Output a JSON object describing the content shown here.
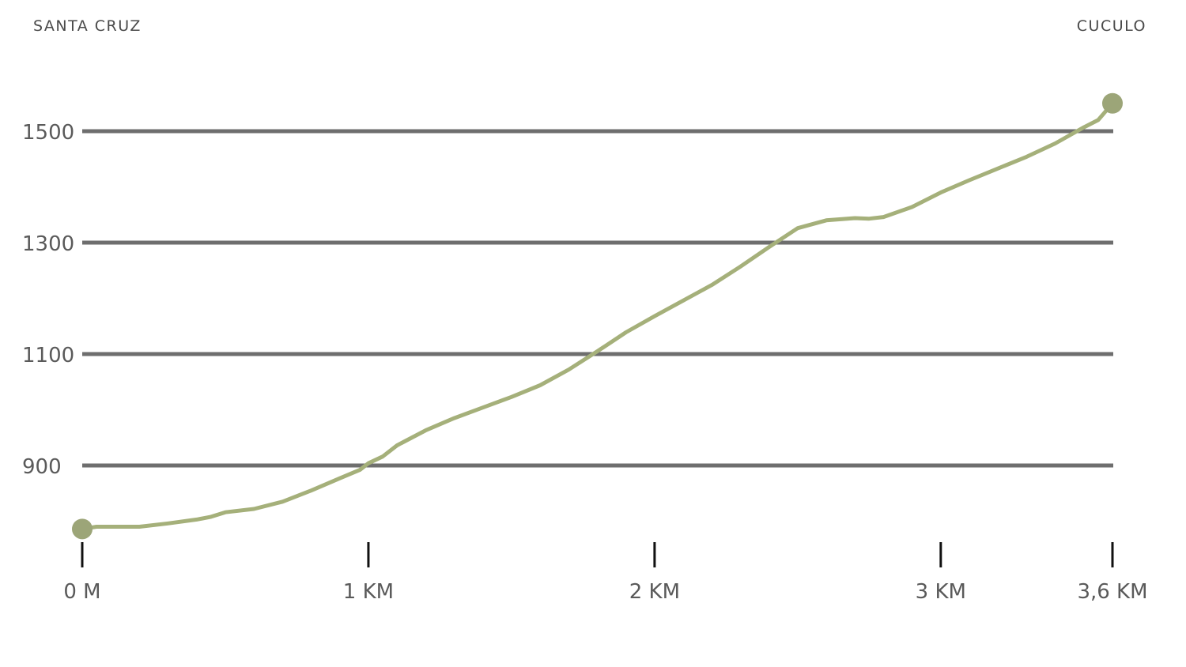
{
  "header": {
    "start_place": "SANTA CRUZ",
    "end_place": "CUCULO"
  },
  "colors": {
    "line": "#a5b07a",
    "marker": "#9ca578",
    "grid": "#6e6e6e",
    "axis_tick": "#111111"
  },
  "chart_data": {
    "type": "line",
    "title": "",
    "xlabel": "",
    "ylabel": "",
    "xlim": [
      0,
      3.6
    ],
    "ylim": [
      790,
      1550
    ],
    "yticks": [
      900,
      1100,
      1300,
      1500
    ],
    "ytick_labels": [
      "900",
      "1100",
      "1300",
      "1500"
    ],
    "xticks": [
      0,
      1,
      2,
      3,
      3.6
    ],
    "xtick_labels": [
      "0 M",
      "1 KM",
      "2 KM",
      "3 KM",
      "3,6 KM"
    ],
    "grid": true,
    "series": [
      {
        "x": [
          0,
          0.05,
          0.1,
          0.2,
          0.3,
          0.4,
          0.45,
          0.5,
          0.6,
          0.7,
          0.8,
          0.9,
          0.97,
          1.0,
          1.05,
          1.1,
          1.2,
          1.3,
          1.4,
          1.5,
          1.6,
          1.7,
          1.8,
          1.9,
          2.0,
          2.1,
          2.2,
          2.3,
          2.4,
          2.5,
          2.6,
          2.7,
          2.75,
          2.8,
          2.9,
          3.0,
          3.1,
          3.2,
          3.3,
          3.4,
          3.5,
          3.55,
          3.6
        ],
        "y": [
          786,
          790,
          790,
          790,
          796,
          803,
          808,
          816,
          822,
          835,
          855,
          877,
          892,
          904,
          916,
          936,
          963,
          985,
          1004,
          1023,
          1044,
          1072,
          1105,
          1139,
          1168,
          1196,
          1224,
          1257,
          1292,
          1326,
          1340,
          1344,
          1343,
          1346,
          1364,
          1390,
          1412,
          1433,
          1454,
          1478,
          1507,
          1520,
          1550
        ]
      }
    ]
  }
}
